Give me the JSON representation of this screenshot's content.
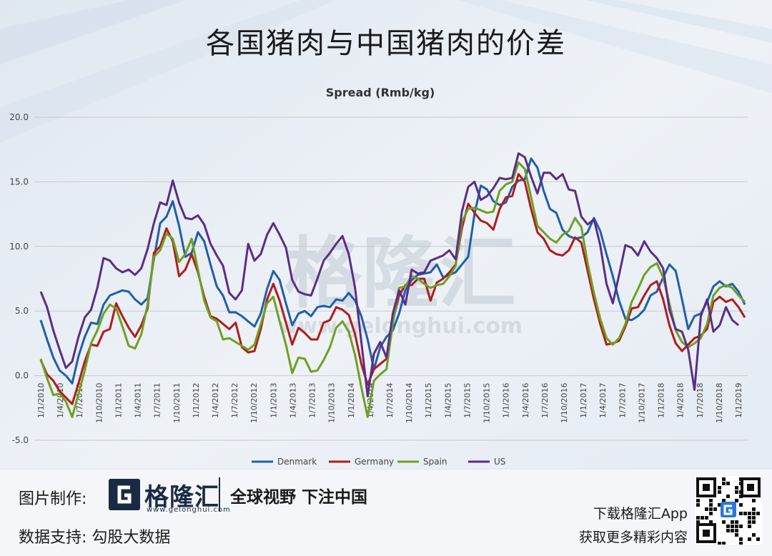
{
  "page": {
    "title": "各国猪肉与中国猪肉的价差",
    "footer": {
      "made_by_label": "图片制作:",
      "brand_name": "格隆汇",
      "brand_url": "www.gelonghui.com",
      "slogan": "全球视野 下注中国",
      "data_support": "数据支持:  勾股大数据",
      "app_line1": "下载格隆汇App",
      "app_line2": "获取更多精彩内容"
    },
    "watermark": {
      "main": "格隆汇",
      "url": "www.gelonghui.com"
    }
  },
  "colors": {
    "Denmark": "#1f5faa",
    "Germany": "#b01c1c",
    "Spain": "#6ea020",
    "US": "#5b2d86",
    "grid": "#c8c8c8",
    "background": "#e9eef5",
    "brand": "#1b2a44"
  },
  "chart_data": {
    "type": "line",
    "title": "Spread (Rmb/kg)",
    "ylim": [
      -5,
      20
    ],
    "y_ticks": [
      "20.0",
      "15.0",
      "10.0",
      "5.0",
      "0.0",
      "-5.0"
    ],
    "x_tick_labels": [
      "1/1/2010",
      "1/4/2010",
      "1/7/2010",
      "1/10/2010",
      "1/1/2011",
      "1/4/2011",
      "1/7/2011",
      "1/10/2011",
      "1/1/2012",
      "1/4/2012",
      "1/7/2012",
      "1/10/2012",
      "1/1/2013",
      "1/4/2013",
      "1/7/2013",
      "1/10/2013",
      "1/1/2014",
      "1/4/2014",
      "1/7/2014",
      "1/10/2014",
      "1/1/2015",
      "1/4/2015",
      "1/7/2015",
      "1/10/2015",
      "1/1/2016",
      "1/4/2016",
      "1/7/2016",
      "1/10/2016",
      "1/1/2017",
      "1/4/2017",
      "1/7/2017",
      "1/10/2017",
      "1/1/2018",
      "1/4/2018",
      "1/7/2018",
      "1/10/2018",
      "1/1/2019"
    ],
    "grid": true,
    "legend_position": "bottom",
    "series": [
      {
        "name": "Denmark",
        "values": [
          4.3,
          2.8,
          1.4,
          0.4,
          0.0,
          -0.6,
          1.5,
          3.0,
          4.1,
          4.0,
          5.5,
          6.2,
          6.4,
          6.6,
          6.5,
          5.9,
          5.5,
          6.0,
          9.0,
          11.8,
          12.3,
          13.5,
          11.6,
          9.2,
          9.5,
          11.1,
          10.4,
          8.6,
          6.9,
          6.2,
          4.9,
          4.9,
          4.6,
          4.2,
          3.8,
          4.8,
          6.7,
          8.1,
          7.4,
          5.6,
          3.9,
          4.8,
          5.0,
          4.6,
          5.3,
          5.4,
          5.3,
          5.9,
          5.8,
          6.4,
          5.8,
          4.6,
          2.8,
          0.5,
          2.2,
          3.0,
          3.5,
          4.8,
          6.6,
          7.4,
          7.8,
          7.9,
          8.0,
          8.6,
          7.6,
          7.8,
          8.0,
          8.6,
          9.2,
          12.5,
          14.7,
          14.4,
          13.5,
          13.2,
          13.4,
          14.6,
          15.1,
          15.2,
          16.8,
          16.1,
          14.3,
          12.9,
          12.6,
          11.3,
          10.8,
          10.6,
          10.7,
          11.1,
          12.2,
          11.2,
          9.4,
          7.7,
          5.8,
          4.4,
          4.3,
          4.6,
          5.1,
          6.2,
          6.5,
          7.6,
          8.6,
          8.1,
          5.9,
          3.6,
          4.6,
          4.8,
          5.7,
          6.9,
          7.3,
          6.9,
          7.1,
          6.5,
          5.5
        ]
      },
      {
        "name": "Germany",
        "values": [
          1.2,
          0.1,
          -0.4,
          -1.2,
          -1.7,
          -2.2,
          -0.6,
          1.1,
          2.4,
          2.3,
          3.4,
          3.6,
          5.6,
          4.6,
          3.7,
          3.0,
          3.9,
          5.2,
          9.5,
          10.0,
          11.4,
          10.4,
          7.7,
          8.2,
          9.4,
          8.0,
          6.1,
          4.6,
          4.4,
          4.0,
          3.6,
          4.1,
          2.2,
          1.8,
          1.9,
          3.6,
          5.9,
          7.1,
          5.8,
          4.1,
          2.4,
          3.7,
          3.3,
          2.8,
          2.8,
          4.1,
          4.3,
          5.3,
          5.1,
          4.7,
          3.2,
          0.9,
          -0.7,
          0.5,
          0.9,
          1.3,
          4.2,
          6.2,
          7.0,
          7.0,
          7.5,
          7.5,
          5.8,
          7.2,
          7.5,
          8.0,
          8.6,
          11.4,
          13.3,
          12.6,
          12.0,
          11.8,
          11.3,
          12.9,
          13.8,
          13.9,
          15.6,
          15.0,
          12.9,
          11.1,
          10.6,
          9.7,
          9.4,
          9.3,
          9.7,
          10.7,
          10.3,
          8.1,
          5.9,
          4.0,
          2.4,
          2.5,
          2.7,
          3.8,
          5.2,
          5.3,
          6.2,
          7.0,
          7.3,
          5.9,
          3.9,
          2.5,
          1.9,
          2.4,
          2.9,
          3.1,
          3.6,
          5.7,
          6.1,
          5.7,
          5.9,
          5.3,
          4.5
        ]
      },
      {
        "name": "Spain",
        "values": [
          1.3,
          -0.2,
          -1.5,
          -1.4,
          -2.0,
          -3.2,
          -1.4,
          0.4,
          2.5,
          3.5,
          4.8,
          5.5,
          5.2,
          3.8,
          2.3,
          2.1,
          3.2,
          5.5,
          9.2,
          9.7,
          11.0,
          10.6,
          8.8,
          9.4,
          10.6,
          8.2,
          5.8,
          4.5,
          4.2,
          2.8,
          2.9,
          2.6,
          2.3,
          2.0,
          2.4,
          4.0,
          5.6,
          6.1,
          4.2,
          2.4,
          0.2,
          1.4,
          1.3,
          0.3,
          0.4,
          1.2,
          2.2,
          3.7,
          4.2,
          3.4,
          1.6,
          -0.9,
          -3.2,
          -0.4,
          0.1,
          0.5,
          4.0,
          6.8,
          6.9,
          7.7,
          7.5,
          7.1,
          6.8,
          7.0,
          7.1,
          7.7,
          8.5,
          11.9,
          12.9,
          13.0,
          12.8,
          12.6,
          12.7,
          14.3,
          14.8,
          15.0,
          16.5,
          16.0,
          13.8,
          11.6,
          11.1,
          10.6,
          10.3,
          10.9,
          11.2,
          12.2,
          11.5,
          8.7,
          6.4,
          4.4,
          2.9,
          2.4,
          2.9,
          4.0,
          5.7,
          6.7,
          7.8,
          8.4,
          8.7,
          7.6,
          5.6,
          3.5,
          2.6,
          2.2,
          2.5,
          2.9,
          4.0,
          6.2,
          6.8,
          7.0,
          6.8,
          6.2,
          5.7
        ]
      },
      {
        "name": "US",
        "values": [
          6.5,
          5.3,
          3.5,
          2.0,
          0.6,
          1.1,
          3.0,
          4.5,
          5.1,
          6.8,
          9.1,
          8.9,
          8.3,
          8.0,
          8.2,
          7.8,
          8.3,
          9.8,
          11.8,
          13.4,
          13.2,
          15.1,
          13.4,
          12.2,
          12.1,
          12.4,
          11.7,
          10.2,
          9.3,
          8.5,
          6.4,
          5.9,
          6.6,
          10.2,
          8.9,
          9.4,
          10.9,
          11.8,
          10.9,
          9.9,
          7.4,
          6.5,
          6.3,
          6.2,
          7.5,
          8.9,
          9.5,
          10.2,
          10.8,
          9.4,
          6.8,
          2.6,
          -1.6,
          1.7,
          2.6,
          1.4,
          4.8,
          6.6,
          5.5,
          8.2,
          7.9,
          8.0,
          8.9,
          9.1,
          9.3,
          9.7,
          9.0,
          12.7,
          14.6,
          15.0,
          13.6,
          13.9,
          14.5,
          15.3,
          15.2,
          15.3,
          17.2,
          16.9,
          15.4,
          14.1,
          15.7,
          15.7,
          15.2,
          15.6,
          14.4,
          14.3,
          12.3,
          11.7,
          12.1,
          10.1,
          7.1,
          5.6,
          7.8,
          10.1,
          9.9,
          9.3,
          10.4,
          9.6,
          9.1,
          8.3,
          5.1,
          3.6,
          3.4,
          2.0,
          -1.1,
          4.6,
          5.9,
          3.4,
          3.9,
          5.3,
          4.3,
          3.9
        ]
      }
    ]
  }
}
